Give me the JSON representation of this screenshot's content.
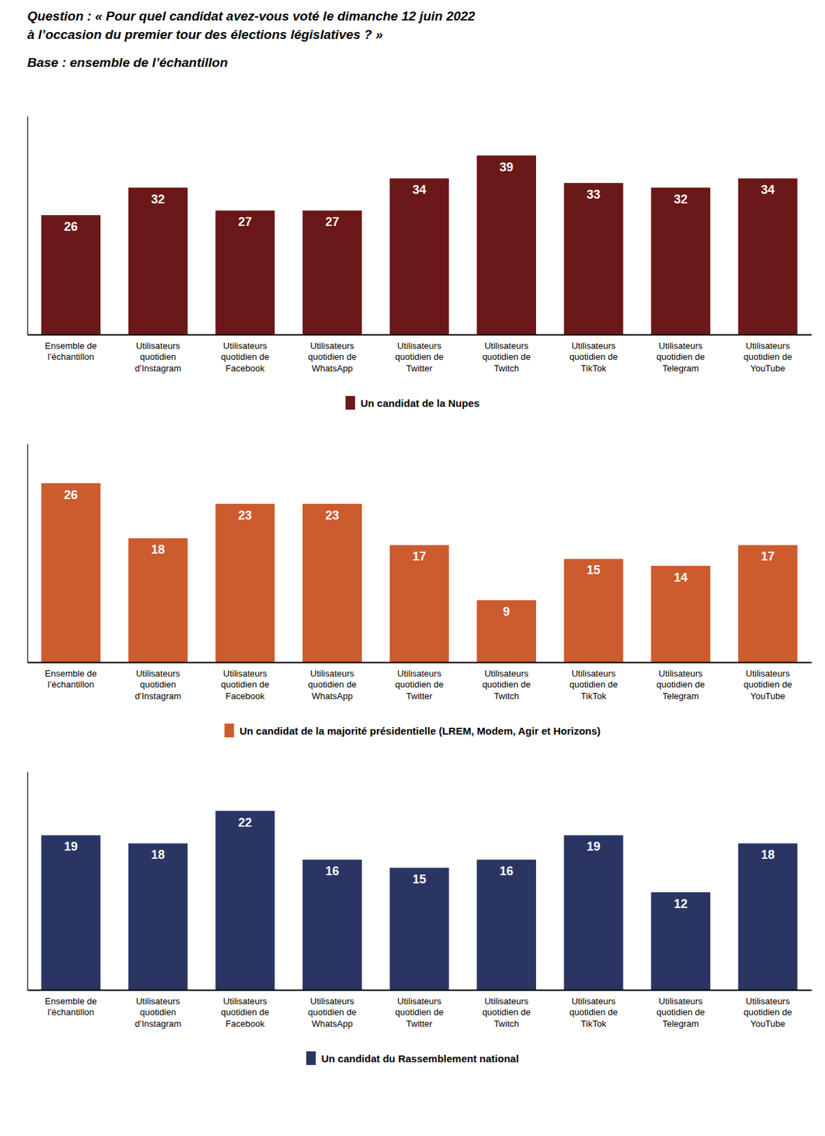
{
  "chart_data": [
    {
      "type": "bar",
      "title": "Question : « Pour quel candidat avez-vous voté le dimanche 12 juin 2022\nà l’occasion du premier tour des élections législatives ? »",
      "subtitle": "Base : ensemble de l’échantillon",
      "categories": [
        "Ensemble de\nl’échantillon",
        "Utilisateurs\nquotidien\nd’Instagram",
        "Utilisateurs\nquotidien de\nFacebook",
        "Utilisateurs\nquotidien de\nWhatsApp",
        "Utilisateurs\nquotidien de\nTwitter",
        "Utilisateurs\nquotidien de\nTwitch",
        "Utilisateurs\nquotidien de\nTikTok",
        "Utilisateurs\nquotidien de\nTelegram",
        "Utilisateurs\nquotidien de\nYouTube"
      ],
      "series": [
        {
          "name": "Un candidat de la Nupes",
          "color": "#6B1818",
          "values": [
            26,
            32,
            27,
            27,
            34,
            39,
            33,
            32,
            34
          ]
        }
      ],
      "ylim": [
        0,
        47.58
      ],
      "yticks": [],
      "tick_labels": "x",
      "data_labels": true,
      "grid": false,
      "legend": "bottom"
    },
    {
      "type": "bar",
      "categories": [
        "Ensemble de\nl’échantillon",
        "Utilisateurs\nquotidien\nd’Instagram",
        "Utilisateurs\nquotidien de\nFacebook",
        "Utilisateurs\nquotidien de\nWhatsApp",
        "Utilisateurs\nquotidien de\nTwitter",
        "Utilisateurs\nquotidien de\nTwitch",
        "Utilisateurs\nquotidien de\nTikTok",
        "Utilisateurs\nquotidien de\nTelegram",
        "Utilisateurs\nquotidien de\nYouTube"
      ],
      "series": [
        {
          "name": "Un candidat de la majorité présidentielle (LREM, Modem, Agir et Horizons)",
          "color": "#CC5B2E",
          "values": [
            26,
            18,
            23,
            23,
            17,
            9,
            15,
            14,
            17
          ]
        }
      ],
      "ylim": [
        0,
        31.72
      ],
      "yticks": [],
      "tick_labels": "x",
      "data_labels": true,
      "grid": false,
      "legend": "bottom"
    },
    {
      "type": "bar",
      "categories": [
        "Ensemble de\nl’échantillon",
        "Utilisateurs\nquotidien\nd’Instagram",
        "Utilisateurs\nquotidien de\nFacebook",
        "Utilisateurs\nquotidien de\nWhatsApp",
        "Utilisateurs\nquotidien de\nTwitter",
        "Utilisateurs\nquotidien de\nTwitch",
        "Utilisateurs\nquotidien de\nTikTok",
        "Utilisateurs\nquotidien de\nTelegram",
        "Utilisateurs\nquotidien de\nYouTube"
      ],
      "series": [
        {
          "name": "Un candidat du Rassemblement national",
          "color": "#2B3564",
          "values": [
            19,
            18,
            22,
            16,
            15,
            16,
            19,
            12,
            18
          ]
        }
      ],
      "ylim": [
        0,
        26.84
      ],
      "yticks": [],
      "tick_labels": "x",
      "data_labels": true,
      "grid": false,
      "legend": "bottom"
    }
  ]
}
